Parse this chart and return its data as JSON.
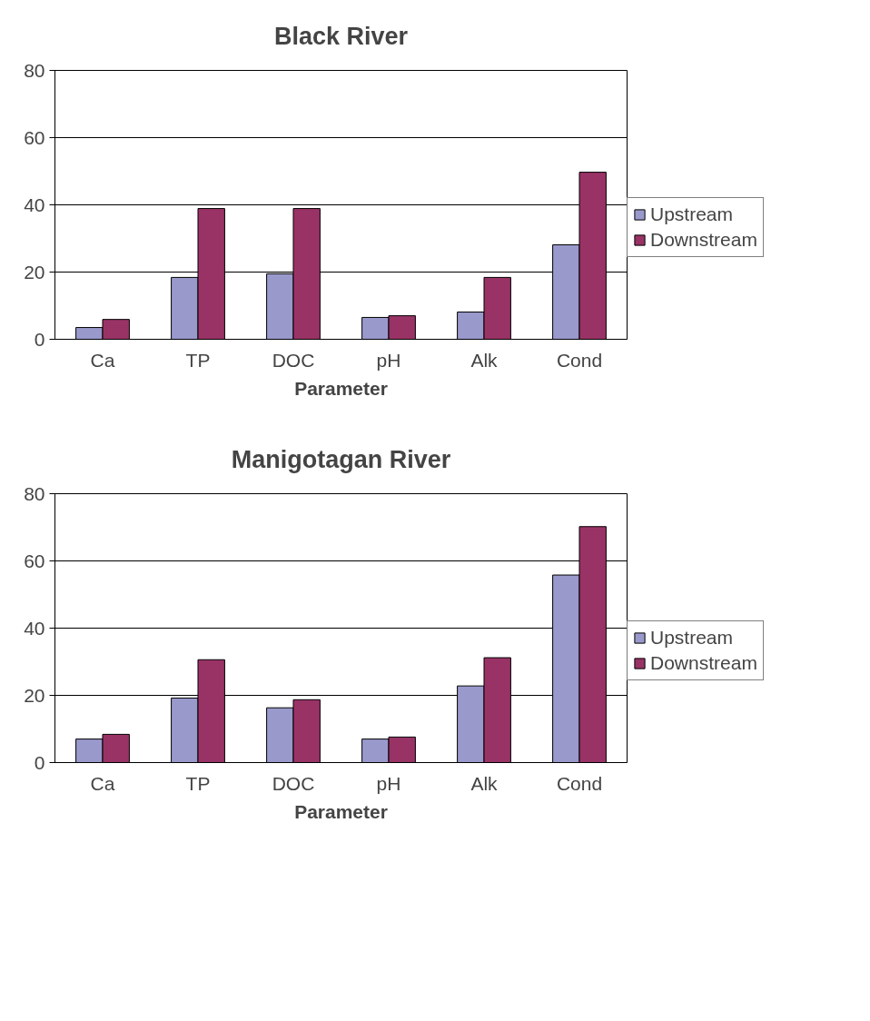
{
  "chart_data": [
    {
      "type": "bar",
      "title": "Black River",
      "xlabel": "Parameter",
      "categories": [
        "Ca",
        "TP",
        "DOC",
        "pH",
        "Alk",
        "Cond"
      ],
      "ylim": [
        0,
        80
      ],
      "yticks": [
        0,
        20,
        40,
        60,
        80
      ],
      "grid": "y",
      "legend": "right",
      "series": [
        {
          "name": "Upstream",
          "color": "#9999cc",
          "values": [
            3.5,
            18.4,
            19.5,
            6.5,
            8.1,
            28.1
          ]
        },
        {
          "name": "Downstream",
          "color": "#993366",
          "values": [
            5.9,
            38.9,
            38.9,
            7.0,
            18.4,
            49.7
          ]
        }
      ]
    },
    {
      "type": "bar",
      "title": "Manigotagan River",
      "xlabel": "Parameter",
      "categories": [
        "Ca",
        "TP",
        "DOC",
        "pH",
        "Alk",
        "Cond"
      ],
      "ylim": [
        0,
        80
      ],
      "yticks": [
        0,
        20,
        40,
        60,
        80
      ],
      "grid": "y",
      "legend": "right",
      "series": [
        {
          "name": "Upstream",
          "color": "#9999cc",
          "values": [
            7.0,
            19.2,
            16.3,
            7.0,
            22.8,
            55.8
          ]
        },
        {
          "name": "Downstream",
          "color": "#993366",
          "values": [
            8.4,
            30.6,
            18.7,
            7.6,
            31.2,
            70.2
          ]
        }
      ]
    }
  ]
}
